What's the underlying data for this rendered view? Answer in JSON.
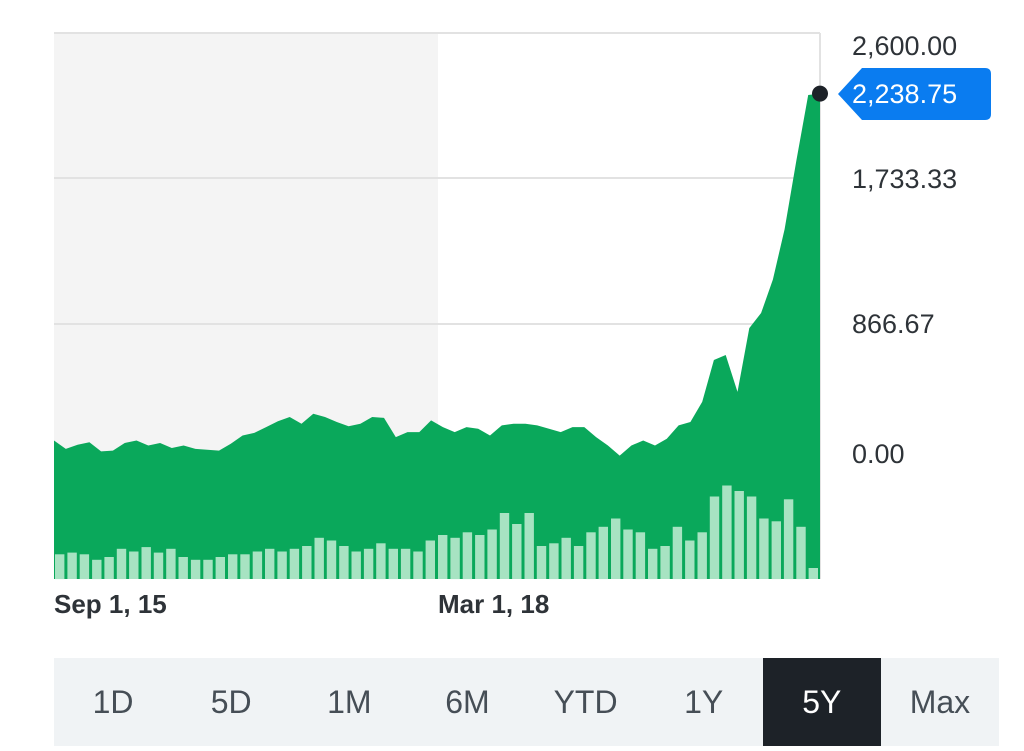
{
  "chart_data": {
    "type": "area",
    "x_tick_labels": [
      "Sep 1, 15",
      "Mar 1, 18"
    ],
    "y_tick_labels": [
      "2,600.00",
      "1,733.33",
      "866.67",
      "0.00"
    ],
    "ylim": [
      0,
      2600
    ],
    "last_value_label": "2,238.75",
    "grid": true,
    "price_series": [
      170,
      120,
      145,
      160,
      105,
      110,
      155,
      170,
      140,
      155,
      125,
      140,
      120,
      115,
      110,
      150,
      200,
      215,
      250,
      285,
      310,
      270,
      330,
      310,
      280,
      255,
      270,
      310,
      305,
      190,
      220,
      220,
      290,
      250,
      220,
      250,
      240,
      200,
      260,
      270,
      270,
      260,
      240,
      220,
      250,
      250,
      190,
      140,
      80,
      140,
      170,
      140,
      180,
      260,
      280,
      400,
      650,
      680,
      460,
      840,
      930,
      1130,
      1430,
      1840,
      2230,
      2238.75
    ],
    "volume_series": [
      45,
      48,
      45,
      35,
      40,
      55,
      50,
      58,
      48,
      55,
      40,
      35,
      35,
      40,
      45,
      45,
      50,
      55,
      50,
      55,
      60,
      75,
      70,
      60,
      50,
      55,
      65,
      55,
      55,
      50,
      70,
      80,
      75,
      85,
      80,
      90,
      120,
      100,
      120,
      60,
      65,
      75,
      60,
      85,
      95,
      110,
      90,
      85,
      55,
      60,
      95,
      70,
      85,
      150,
      170,
      160,
      150,
      110,
      105,
      145,
      95,
      20
    ],
    "range_options": [
      "1D",
      "5D",
      "1M",
      "6M",
      "YTD",
      "1Y",
      "5Y",
      "Max"
    ],
    "selected_range": "5Y"
  },
  "colors": {
    "area_fill": "#0aa85b",
    "volume_bar": "#a7e3c2",
    "shaded_band": "#f4f4f4",
    "grid": "#e2e2e2",
    "axis_text": "#2e3338",
    "badge": "#0a7cf0",
    "marker": "#1d2228",
    "active_range_bg": "#1d2228"
  }
}
